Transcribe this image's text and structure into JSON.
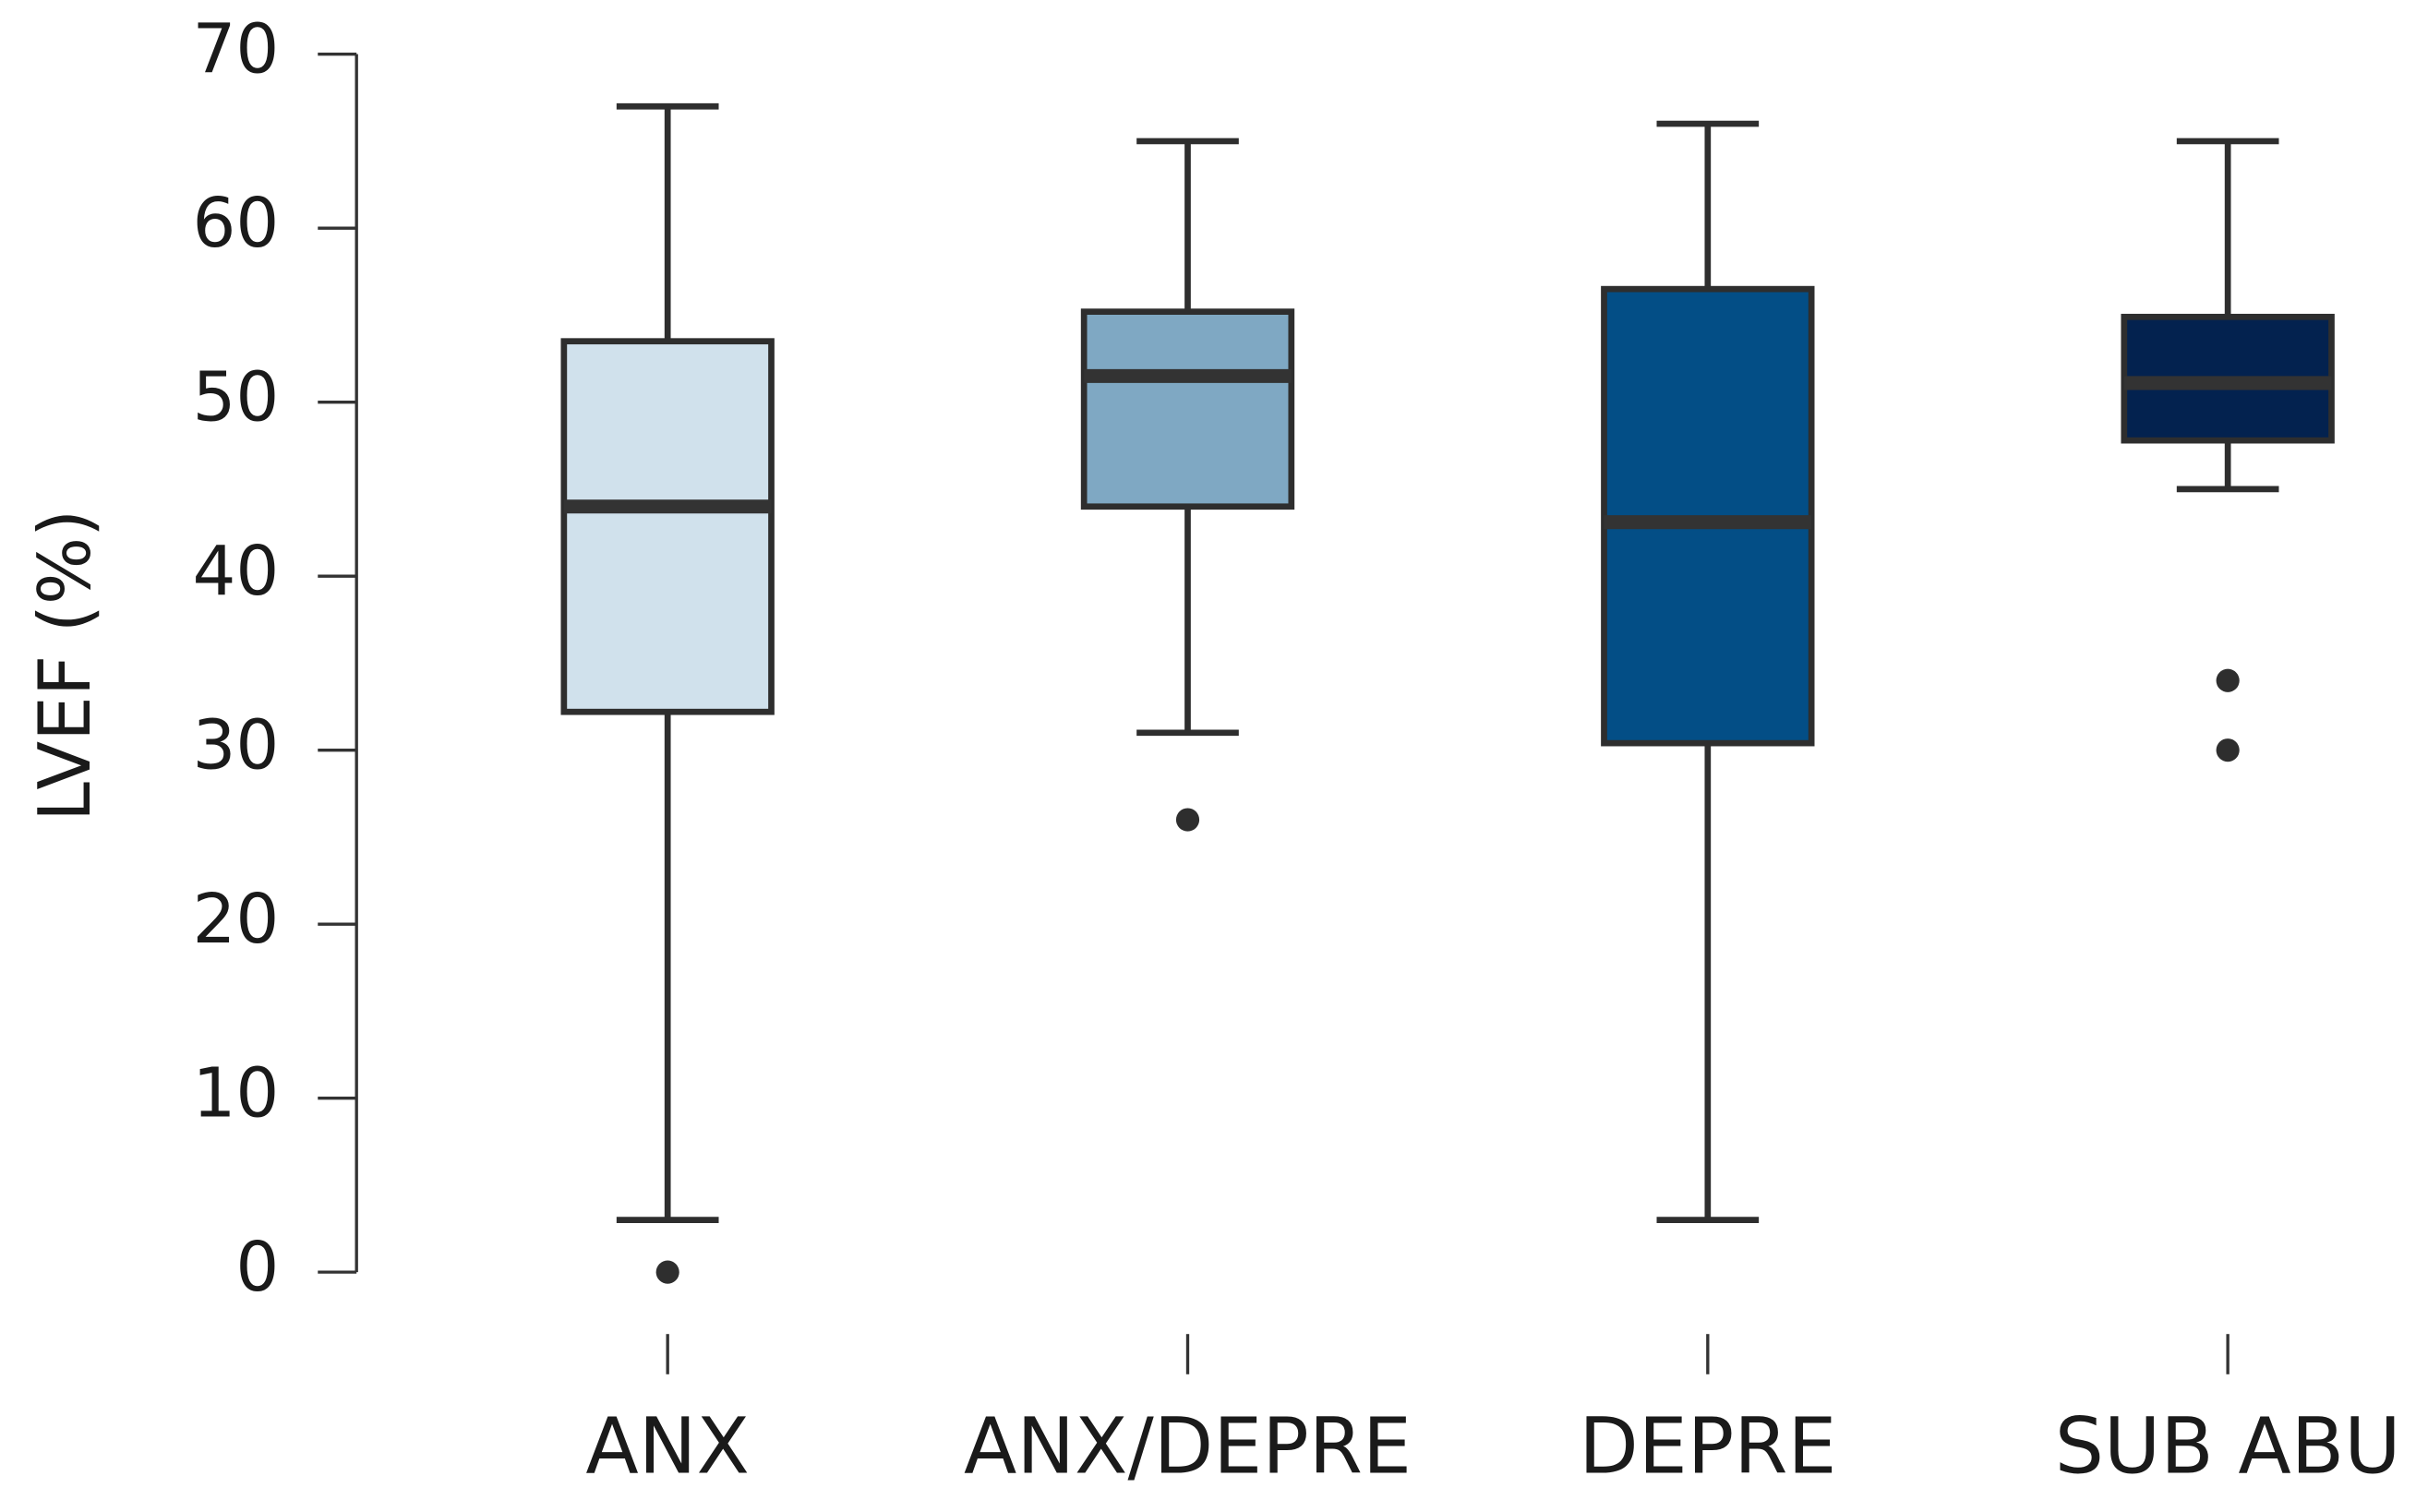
{
  "chart_data": {
    "type": "box",
    "y_label": "LVEF (%)",
    "categories": [
      "ANX",
      "ANX/DEPRE",
      "DEPRE",
      "SUB ABU"
    ],
    "boxes": [
      {
        "color": "#d0e1ec",
        "whisker_low": 3,
        "q1": 32.2,
        "median": 44,
        "q3": 53.5,
        "whisker_high": 67,
        "outliers": [
          0
        ]
      },
      {
        "color": "#7fa8c3",
        "whisker_low": 31,
        "q1": 44,
        "median": 51.5,
        "q3": 55.2,
        "whisker_high": 65,
        "outliers": [
          26
        ]
      },
      {
        "color": "#034e86",
        "whisker_low": 3,
        "q1": 30.4,
        "median": 43.1,
        "q3": 56.5,
        "whisker_high": 66,
        "outliers": []
      },
      {
        "color": "#03224f",
        "whisker_low": 45,
        "q1": 47.8,
        "median": 51.1,
        "q3": 54.9,
        "whisker_high": 65,
        "outliers": [
          34,
          30
        ]
      }
    ],
    "ylim": [
      0,
      70
    ],
    "yticks": [
      0,
      10,
      20,
      30,
      40,
      50,
      60,
      70
    ]
  }
}
